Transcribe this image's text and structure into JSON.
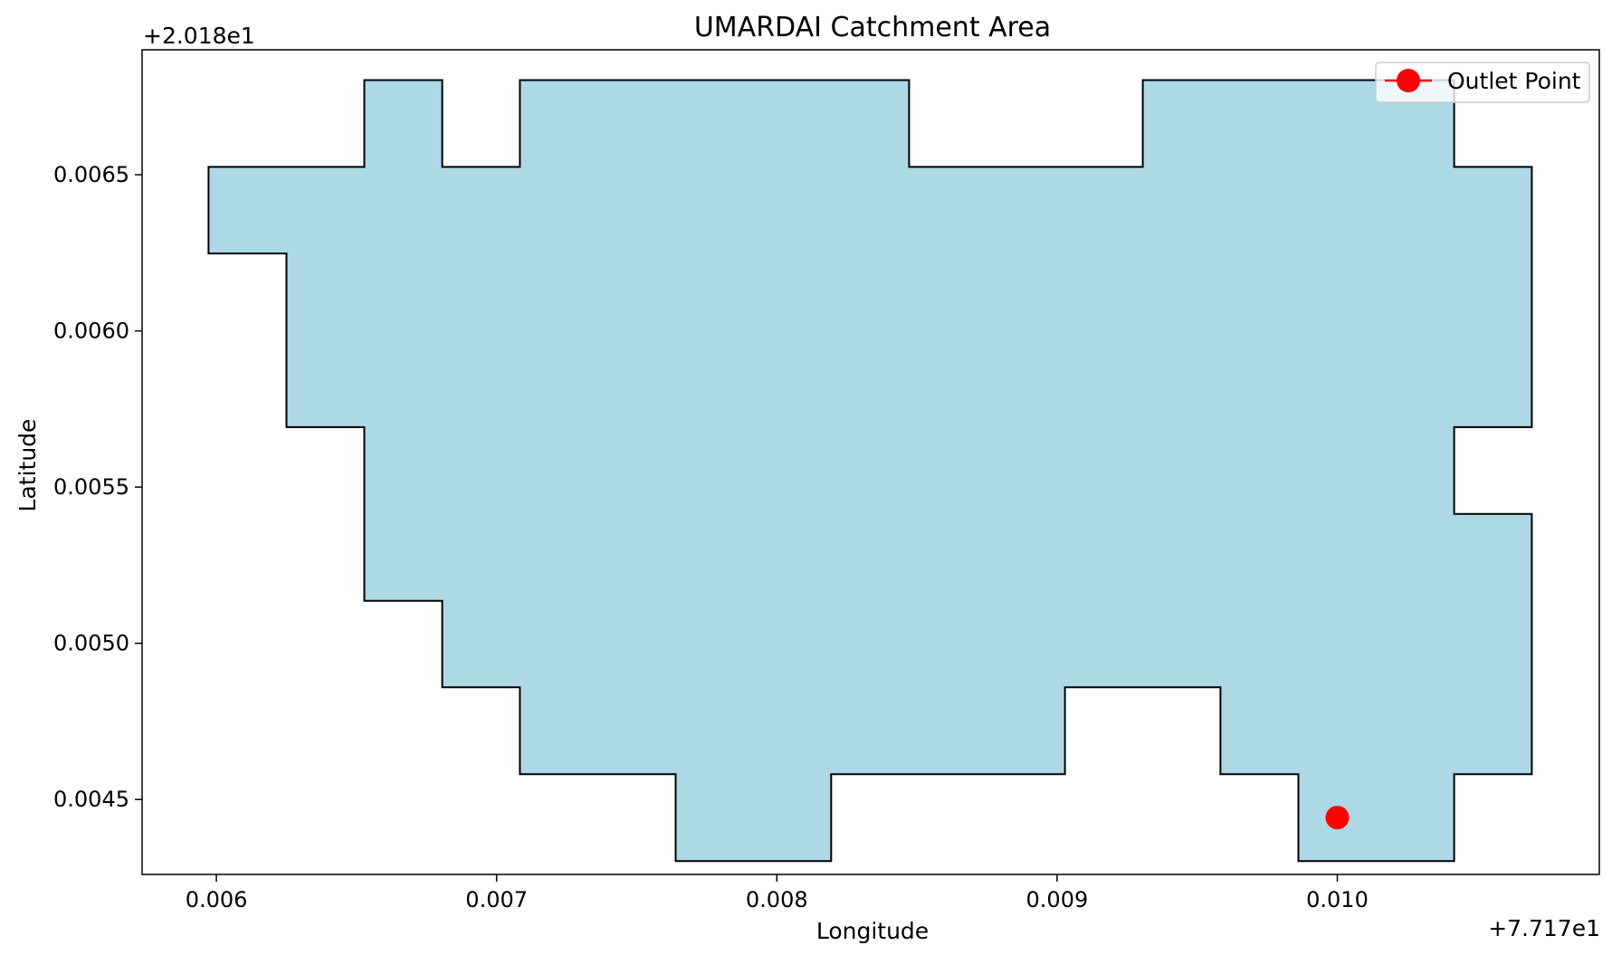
{
  "chart_data": {
    "type": "polygon-map",
    "title": "UMARDAI Catchment Area",
    "xlabel": "Longitude",
    "ylabel": "Latitude",
    "x_offset_label": "+7.717e1",
    "y_offset_label": "+2.018e1",
    "x_offset": 77.17,
    "y_offset": 20.18,
    "xlim": [
      0.005735,
      0.010935
    ],
    "ylim": [
      0.00426,
      0.0069
    ],
    "x_ticks": [
      0.006,
      0.007,
      0.008,
      0.009,
      0.01
    ],
    "x_tick_labels": [
      "0.006",
      "0.007",
      "0.008",
      "0.009",
      "0.010"
    ],
    "y_ticks": [
      0.0045,
      0.005,
      0.0055,
      0.006,
      0.0065
    ],
    "y_tick_labels": [
      "0.0045",
      "0.0050",
      "0.0055",
      "0.0060",
      "0.0065"
    ],
    "grid": false,
    "legend_position": "top-right",
    "catchment": {
      "fill_color": "#add8e6",
      "edge_color": "#000000",
      "vertices": [
        [
          0.005972,
          0.006525
        ],
        [
          0.006528,
          0.006525
        ],
        [
          0.006528,
          0.006803
        ],
        [
          0.006806,
          0.006803
        ],
        [
          0.006806,
          0.006525
        ],
        [
          0.007083,
          0.006525
        ],
        [
          0.007083,
          0.006803
        ],
        [
          0.008472,
          0.006803
        ],
        [
          0.008472,
          0.006525
        ],
        [
          0.009306,
          0.006525
        ],
        [
          0.009306,
          0.006803
        ],
        [
          0.010417,
          0.006803
        ],
        [
          0.010417,
          0.006525
        ],
        [
          0.010694,
          0.006525
        ],
        [
          0.010694,
          0.005692
        ],
        [
          0.010417,
          0.005692
        ],
        [
          0.010417,
          0.005414
        ],
        [
          0.010694,
          0.005414
        ],
        [
          0.010694,
          0.004581
        ],
        [
          0.010417,
          0.004581
        ],
        [
          0.010417,
          0.004303
        ],
        [
          0.009861,
          0.004303
        ],
        [
          0.009861,
          0.004581
        ],
        [
          0.009583,
          0.004581
        ],
        [
          0.009583,
          0.004859
        ],
        [
          0.009028,
          0.004859
        ],
        [
          0.009028,
          0.004581
        ],
        [
          0.008194,
          0.004581
        ],
        [
          0.008194,
          0.004303
        ],
        [
          0.007639,
          0.004303
        ],
        [
          0.007639,
          0.004581
        ],
        [
          0.007083,
          0.004581
        ],
        [
          0.007083,
          0.004859
        ],
        [
          0.006806,
          0.004859
        ],
        [
          0.006806,
          0.005136
        ],
        [
          0.006528,
          0.005136
        ],
        [
          0.006528,
          0.005692
        ],
        [
          0.00625,
          0.005692
        ],
        [
          0.00625,
          0.006248
        ],
        [
          0.005972,
          0.006248
        ]
      ]
    },
    "outlet_point": {
      "name": "Outlet Point",
      "x": 0.01,
      "y": 0.004442,
      "color": "#ff0000"
    }
  }
}
